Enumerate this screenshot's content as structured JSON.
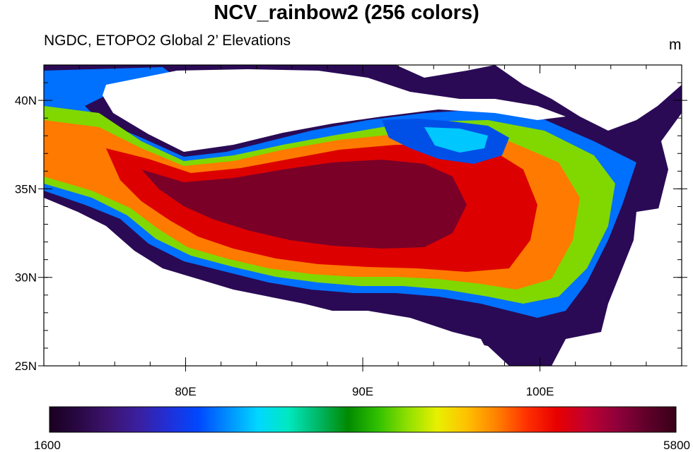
{
  "title": "NCV_rainbow2 (256 colors)",
  "subtitle": "NGDC, ETOPO2 Global 2’ Elevations",
  "units": "m",
  "map": {
    "lon_range": [
      72,
      108
    ],
    "lat_range": [
      25,
      42
    ],
    "lat_ticks": [
      {
        "value": 25,
        "label": "25N"
      },
      {
        "value": 30,
        "label": "30N"
      },
      {
        "value": 35,
        "label": "35N"
      },
      {
        "value": 40,
        "label": "40N"
      }
    ],
    "lon_ticks": [
      {
        "value": 80,
        "label": "80E"
      },
      {
        "value": 90,
        "label": "90E"
      },
      {
        "value": 100,
        "label": "100E"
      }
    ]
  },
  "colorbar": {
    "min": 1600,
    "max": 5800,
    "min_label": "1600",
    "max_label": "5800",
    "colors": [
      "#1a0020",
      "#2a0845",
      "#3c1470",
      "#3a1fa0",
      "#2030d8",
      "#0048ff",
      "#0090ff",
      "#00d8ff",
      "#00e8c0",
      "#00b868",
      "#008a00",
      "#30c000",
      "#90e000",
      "#e8f000",
      "#ffc000",
      "#ff8000",
      "#ff3000",
      "#e80000",
      "#c00030",
      "#90003a",
      "#60002a",
      "#380018"
    ]
  }
}
